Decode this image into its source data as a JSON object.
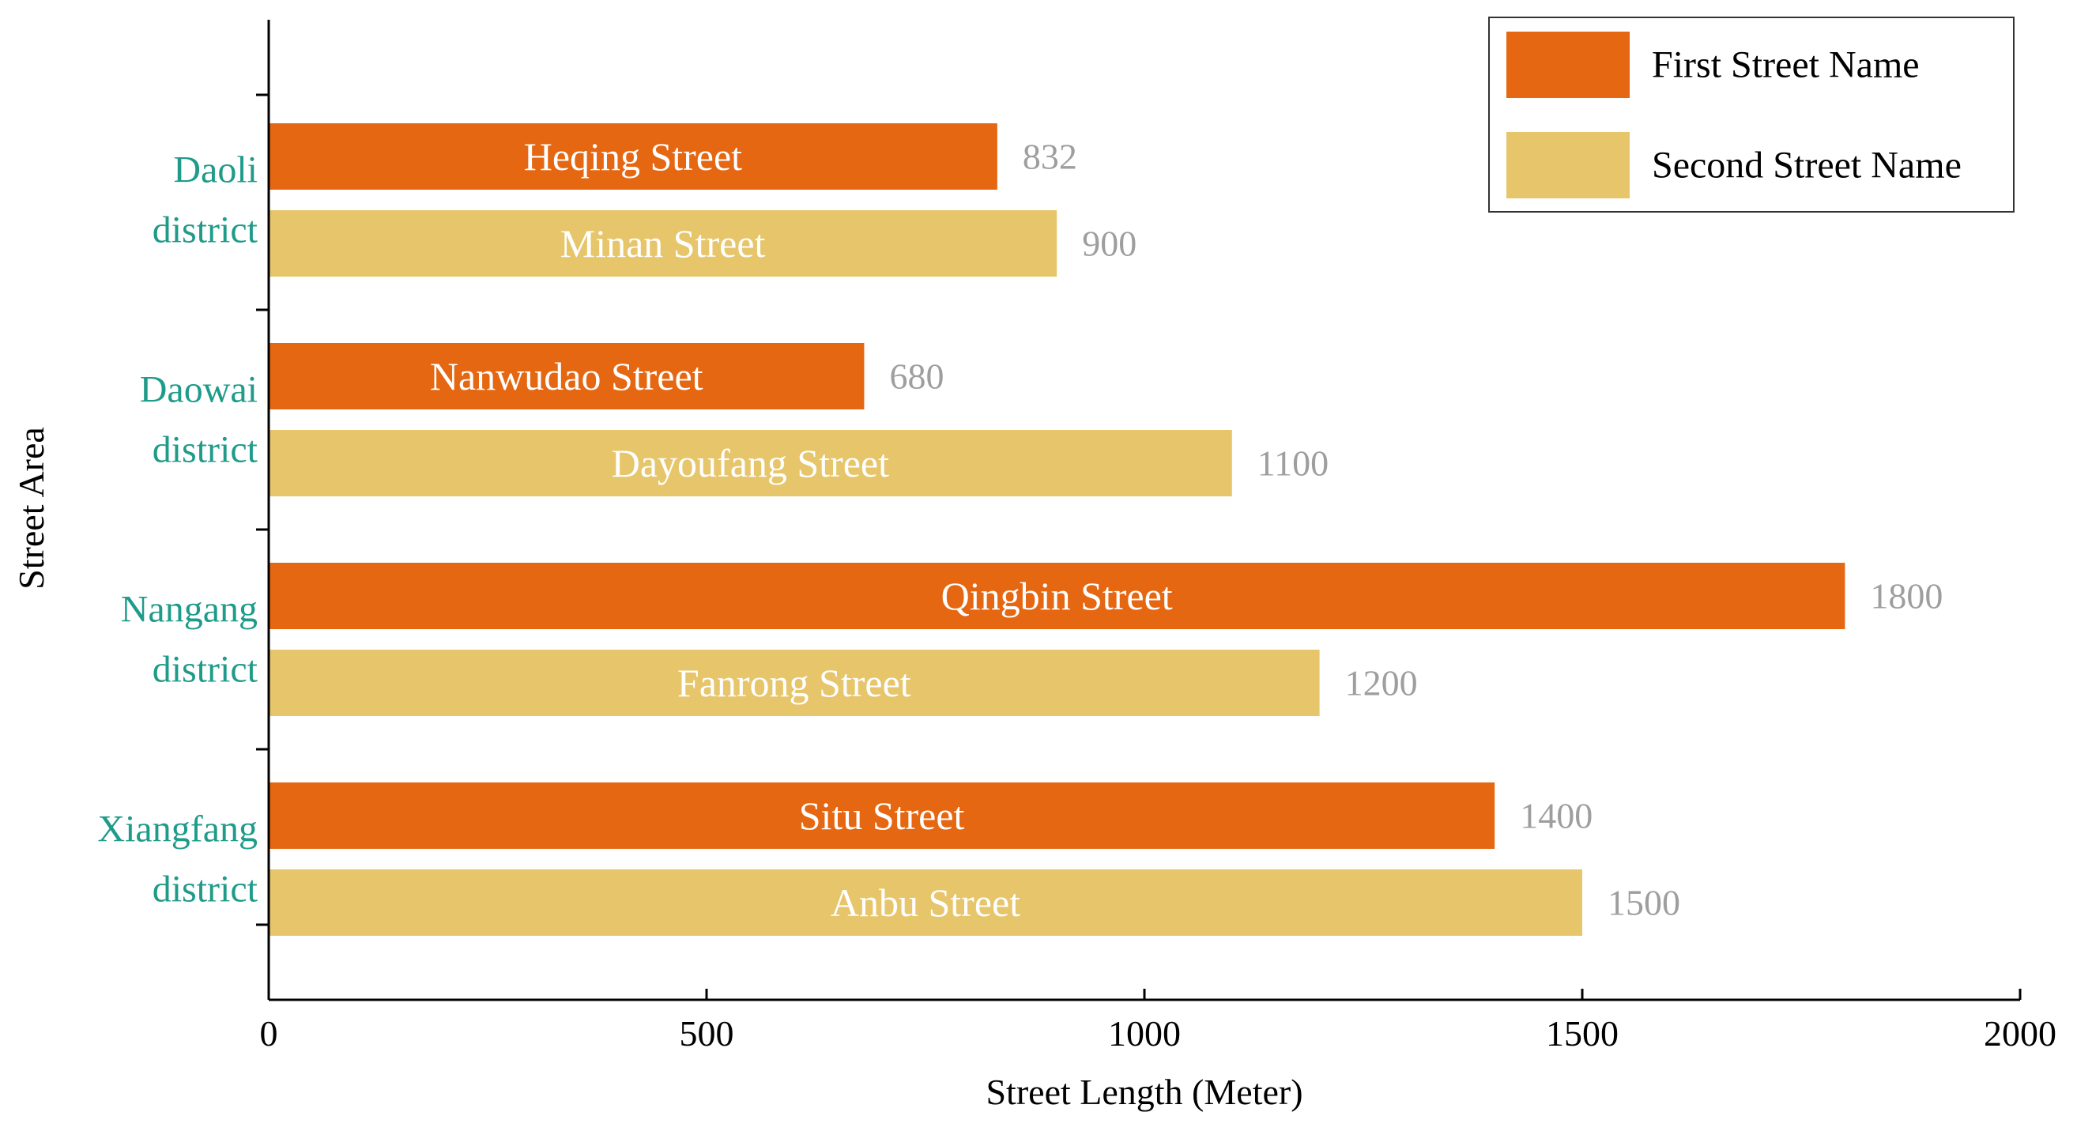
{
  "chart_data": {
    "type": "bar",
    "orientation": "horizontal",
    "xlabel": "Street Length (Meter)",
    "ylabel": "Street Area",
    "xlim": [
      0,
      2000
    ],
    "xticks": [
      0,
      500,
      1000,
      1500,
      2000
    ],
    "grid": false,
    "legend_position": "top-right",
    "categories": [
      {
        "line1": "Daoli",
        "line2": "district"
      },
      {
        "line1": "Daowai",
        "line2": "district"
      },
      {
        "line1": "Nangang",
        "line2": "district"
      },
      {
        "line1": "Xiangfang",
        "line2": "district"
      }
    ],
    "series": [
      {
        "name": "First Street Name",
        "color": "#e56712",
        "values": [
          832,
          680,
          1800,
          1400
        ],
        "street_names": [
          "Heqing Street",
          "Nanwudao Street",
          "Qingbin Street",
          "Situ Street"
        ]
      },
      {
        "name": "Second Street Name",
        "color": "#e6c56b",
        "values": [
          900,
          1100,
          1200,
          1500
        ],
        "street_names": [
          "Minan Street",
          "Dayoufang Street",
          "Fanrong Street",
          "Anbu Street"
        ]
      }
    ],
    "category_label_color": "#1f9b8a",
    "value_label_color": "#9e9e9e"
  }
}
